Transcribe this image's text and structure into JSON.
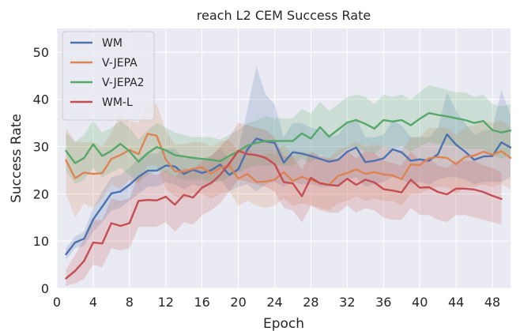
{
  "chart_data": {
    "type": "line",
    "title": "reach L2 CEM Success Rate",
    "xlabel": "Epoch",
    "ylabel": "Success Rate",
    "xlim": [
      0,
      50
    ],
    "ylim": [
      0,
      55
    ],
    "xticks": [
      0,
      4,
      8,
      12,
      16,
      20,
      24,
      28,
      32,
      36,
      40,
      44,
      48
    ],
    "yticks": [
      0,
      10,
      20,
      30,
      40,
      50
    ],
    "grid": true,
    "legend_position": "top-left",
    "x": [
      1,
      2,
      3,
      4,
      5,
      6,
      7,
      8,
      9,
      10,
      11,
      12,
      13,
      14,
      15,
      16,
      17,
      18,
      19,
      20,
      21,
      22,
      23,
      24,
      25,
      26,
      27,
      28,
      29,
      30,
      31,
      32,
      33,
      34,
      35,
      36,
      37,
      38,
      39,
      40,
      41,
      42,
      43,
      44,
      45,
      46,
      47,
      48,
      49,
      50
    ],
    "series": [
      {
        "name": "WM",
        "color": "#4c72b0",
        "values": [
          7.2,
          9.7,
          10.5,
          14.6,
          17.3,
          20.1,
          20.5,
          21.9,
          23.6,
          24.9,
          24.9,
          26.0,
          25.8,
          24.2,
          25.1,
          24.4,
          25.0,
          26.2,
          24.0,
          25.2,
          29.4,
          31.7,
          31.1,
          30.8,
          26.6,
          28.8,
          28.5,
          28.0,
          27.4,
          26.8,
          27.2,
          28.9,
          29.8,
          26.7,
          27.0,
          27.5,
          29.4,
          28.8,
          27.0,
          27.3,
          27.0,
          28.4,
          32.6,
          30.4,
          28.9,
          27.2,
          27.9,
          28.0,
          30.9,
          29.8
        ],
        "band": [
          [
            6.0,
            8.5
          ],
          [
            8.5,
            11.0
          ],
          [
            9.0,
            12.0
          ],
          [
            12.0,
            17.0
          ],
          [
            14.0,
            20.5
          ],
          [
            16.5,
            23.5
          ],
          [
            17.0,
            24.0
          ],
          [
            18.5,
            25.5
          ],
          [
            20.0,
            27.5
          ],
          [
            21.5,
            28.5
          ],
          [
            21.5,
            28.5
          ],
          [
            22.5,
            29.5
          ],
          [
            22.0,
            29.5
          ],
          [
            21.0,
            27.5
          ],
          [
            22.0,
            28.0
          ],
          [
            21.5,
            27.5
          ],
          [
            22.0,
            28.0
          ],
          [
            23.0,
            29.5
          ],
          [
            20.5,
            27.5
          ],
          [
            21.5,
            29.0
          ],
          [
            22.0,
            38.0
          ],
          [
            20.5,
            47.0
          ],
          [
            22.0,
            41.0
          ],
          [
            22.5,
            39.0
          ],
          [
            21.5,
            32.0
          ],
          [
            22.5,
            35.0
          ],
          [
            22.0,
            35.0
          ],
          [
            22.0,
            34.0
          ],
          [
            21.5,
            33.5
          ],
          [
            21.5,
            32.0
          ],
          [
            22.0,
            32.5
          ],
          [
            23.0,
            35.0
          ],
          [
            23.5,
            36.0
          ],
          [
            21.5,
            32.0
          ],
          [
            22.0,
            32.0
          ],
          [
            22.5,
            32.5
          ],
          [
            23.5,
            35.5
          ],
          [
            23.0,
            34.5
          ],
          [
            22.0,
            32.0
          ],
          [
            22.5,
            32.0
          ],
          [
            22.0,
            32.0
          ],
          [
            23.0,
            34.0
          ],
          [
            23.5,
            41.5
          ],
          [
            23.5,
            37.5
          ],
          [
            23.0,
            35.0
          ],
          [
            22.0,
            32.5
          ],
          [
            22.5,
            33.5
          ],
          [
            22.5,
            33.5
          ],
          [
            22.5,
            42.0
          ],
          [
            23.5,
            36.5
          ]
        ]
      },
      {
        "name": "V-JEPA",
        "color": "#dd8452",
        "values": [
          27.1,
          23.3,
          24.5,
          24.2,
          24.4,
          27.4,
          28.2,
          29.3,
          28.4,
          32.7,
          32.3,
          27.3,
          24.8,
          24.7,
          25.3,
          25.6,
          24.3,
          25.5,
          26.0,
          23.2,
          24.2,
          22.5,
          22.6,
          23.0,
          24.6,
          22.7,
          23.6,
          22.9,
          22.3,
          21.9,
          23.8,
          24.4,
          25.2,
          24.2,
          24.6,
          24.1,
          23.9,
          23.1,
          26.2,
          26.1,
          27.5,
          27.8,
          27.6,
          26.3,
          27.8,
          28.1,
          28.9,
          28.3,
          29.0,
          27.6
        ],
        "band": [
          [
            20.0,
            34.0
          ],
          [
            15.0,
            31.0
          ],
          [
            18.0,
            31.0
          ],
          [
            17.0,
            31.0
          ],
          [
            19.0,
            30.0
          ],
          [
            22.0,
            33.0
          ],
          [
            21.0,
            37.0
          ],
          [
            23.0,
            35.5
          ],
          [
            22.0,
            35.0
          ],
          [
            26.0,
            39.5
          ],
          [
            26.0,
            39.0
          ],
          [
            21.0,
            33.5
          ],
          [
            19.5,
            30.5
          ],
          [
            19.0,
            30.5
          ],
          [
            20.0,
            31.0
          ],
          [
            20.0,
            31.0
          ],
          [
            19.0,
            30.0
          ],
          [
            20.0,
            31.0
          ],
          [
            20.5,
            31.5
          ],
          [
            17.5,
            29.0
          ],
          [
            18.5,
            30.0
          ],
          [
            17.5,
            28.0
          ],
          [
            17.0,
            28.5
          ],
          [
            17.5,
            28.5
          ],
          [
            19.0,
            30.5
          ],
          [
            17.5,
            28.0
          ],
          [
            18.0,
            29.0
          ],
          [
            17.5,
            28.5
          ],
          [
            17.0,
            28.0
          ],
          [
            16.5,
            27.5
          ],
          [
            18.0,
            29.5
          ],
          [
            18.5,
            30.0
          ],
          [
            19.5,
            31.0
          ],
          [
            18.5,
            30.0
          ],
          [
            19.0,
            30.5
          ],
          [
            18.5,
            30.0
          ],
          [
            18.5,
            29.5
          ],
          [
            17.5,
            29.0
          ],
          [
            20.0,
            32.0
          ],
          [
            20.0,
            32.0
          ],
          [
            21.0,
            34.0
          ],
          [
            21.5,
            34.0
          ],
          [
            21.5,
            34.0
          ],
          [
            20.0,
            32.5
          ],
          [
            21.5,
            34.0
          ],
          [
            21.5,
            34.5
          ],
          [
            22.0,
            35.5
          ],
          [
            21.5,
            35.0
          ],
          [
            22.0,
            35.5
          ],
          [
            21.0,
            34.0
          ]
        ]
      },
      {
        "name": "V-JEPA2",
        "color": "#55a868",
        "values": [
          29.1,
          26.5,
          27.6,
          30.5,
          28.0,
          29.1,
          30.6,
          29.0,
          26.8,
          28.6,
          29.9,
          29.2,
          28.2,
          27.9,
          27.6,
          27.4,
          27.2,
          26.9,
          28.0,
          29.0,
          30.2,
          30.8,
          31.2,
          31.2,
          31.2,
          31.2,
          32.8,
          31.7,
          34.1,
          32.1,
          33.6,
          35.1,
          35.6,
          34.8,
          33.8,
          35.6,
          35.3,
          35.6,
          34.5,
          35.9,
          37.1,
          36.7,
          36.4,
          36.0,
          35.6,
          35.0,
          35.4,
          33.5,
          33.0,
          33.4
        ],
        "band": [
          [
            25.0,
            33.0
          ],
          [
            22.0,
            31.0
          ],
          [
            23.0,
            32.5
          ],
          [
            25.5,
            35.5
          ],
          [
            23.5,
            33.0
          ],
          [
            24.5,
            34.0
          ],
          [
            25.5,
            35.5
          ],
          [
            24.0,
            34.0
          ],
          [
            22.5,
            31.5
          ],
          [
            24.0,
            33.5
          ],
          [
            25.0,
            35.0
          ],
          [
            24.5,
            34.0
          ],
          [
            23.5,
            33.0
          ],
          [
            23.0,
            32.5
          ],
          [
            23.0,
            32.0
          ],
          [
            23.0,
            32.0
          ],
          [
            22.5,
            32.0
          ],
          [
            22.5,
            31.5
          ],
          [
            23.5,
            32.5
          ],
          [
            24.5,
            33.5
          ],
          [
            25.5,
            35.0
          ],
          [
            26.0,
            35.5
          ],
          [
            26.0,
            36.5
          ],
          [
            26.0,
            36.0
          ],
          [
            26.0,
            36.0
          ],
          [
            26.0,
            36.0
          ],
          [
            27.5,
            38.0
          ],
          [
            26.5,
            37.0
          ],
          [
            28.5,
            39.5
          ],
          [
            27.0,
            37.5
          ],
          [
            28.0,
            39.0
          ],
          [
            29.5,
            40.5
          ],
          [
            30.0,
            41.0
          ],
          [
            29.0,
            40.5
          ],
          [
            28.5,
            39.0
          ],
          [
            30.0,
            41.0
          ],
          [
            29.5,
            40.5
          ],
          [
            30.0,
            41.0
          ],
          [
            29.0,
            40.0
          ],
          [
            30.0,
            41.5
          ],
          [
            31.0,
            43.0
          ],
          [
            30.5,
            42.5
          ],
          [
            30.5,
            42.0
          ],
          [
            30.0,
            41.5
          ],
          [
            29.5,
            41.5
          ],
          [
            29.5,
            40.5
          ],
          [
            29.5,
            41.0
          ],
          [
            28.0,
            39.0
          ],
          [
            27.5,
            38.5
          ],
          [
            28.0,
            39.0
          ]
        ]
      },
      {
        "name": "WM-L",
        "color": "#c44e52",
        "values": [
          2.1,
          3.7,
          5.8,
          9.7,
          9.5,
          13.8,
          13.2,
          13.8,
          18.5,
          18.7,
          18.6,
          19.4,
          17.7,
          19.8,
          19.2,
          21.3,
          22.3,
          24.0,
          26.4,
          29.1,
          28.4,
          28.2,
          27.6,
          26.3,
          22.5,
          22.2,
          19.5,
          23.4,
          22.2,
          21.9,
          21.7,
          23.2,
          21.9,
          23.0,
          22.4,
          21.0,
          20.7,
          20.3,
          23.0,
          21.3,
          21.4,
          20.4,
          19.9,
          21.1,
          21.1,
          20.9,
          20.4,
          19.6,
          18.9,
          null
        ],
        "band": [
          [
            0.5,
            4.0
          ],
          [
            1.0,
            7.0
          ],
          [
            2.0,
            10.5
          ],
          [
            5.0,
            14.5
          ],
          [
            4.5,
            14.5
          ],
          [
            8.5,
            19.0
          ],
          [
            8.0,
            18.5
          ],
          [
            8.5,
            19.0
          ],
          [
            13.0,
            24.0
          ],
          [
            13.0,
            24.5
          ],
          [
            13.0,
            24.0
          ],
          [
            14.0,
            25.0
          ],
          [
            12.0,
            23.5
          ],
          [
            14.0,
            25.5
          ],
          [
            13.5,
            25.0
          ],
          [
            15.5,
            27.0
          ],
          [
            16.5,
            28.0
          ],
          [
            18.0,
            30.0
          ],
          [
            20.5,
            32.0
          ],
          [
            23.0,
            35.0
          ],
          [
            22.5,
            34.5
          ],
          [
            22.0,
            34.0
          ],
          [
            21.5,
            33.5
          ],
          [
            20.5,
            32.0
          ],
          [
            17.0,
            28.0
          ],
          [
            16.5,
            28.0
          ],
          [
            14.0,
            25.0
          ],
          [
            17.5,
            29.0
          ],
          [
            16.5,
            28.0
          ],
          [
            16.0,
            27.5
          ],
          [
            16.0,
            27.5
          ],
          [
            17.5,
            29.0
          ],
          [
            16.0,
            27.5
          ],
          [
            17.0,
            29.0
          ],
          [
            16.5,
            28.5
          ],
          [
            15.0,
            27.0
          ],
          [
            14.5,
            26.5
          ],
          [
            14.5,
            26.0
          ],
          [
            17.0,
            29.0
          ],
          [
            15.5,
            27.0
          ],
          [
            15.5,
            27.5
          ],
          [
            14.5,
            26.0
          ],
          [
            14.0,
            25.5
          ],
          [
            15.5,
            27.0
          ],
          [
            15.5,
            27.0
          ],
          [
            15.0,
            27.0
          ],
          [
            14.5,
            26.0
          ],
          [
            14.0,
            25.5
          ],
          [
            13.5,
            24.5
          ],
          null
        ]
      }
    ]
  }
}
